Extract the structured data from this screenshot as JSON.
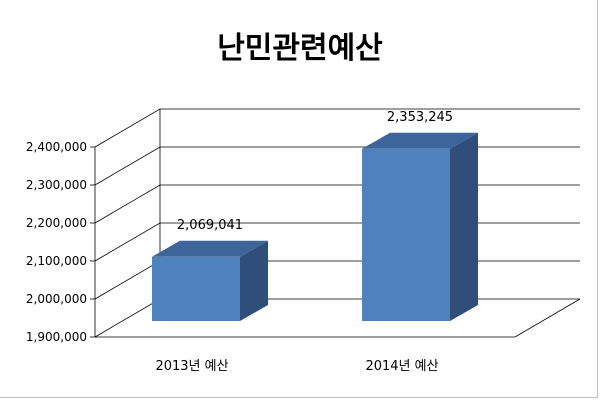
{
  "chart_data": {
    "type": "bar",
    "title": "난민관련예산",
    "categories": [
      "2013년 예산",
      "2014년 예산"
    ],
    "values": [
      2069041,
      2353245
    ],
    "data_labels": [
      "2,069,041",
      "2,353,245"
    ],
    "y_ticks": [
      "1,900,000",
      "2,000,000",
      "2,100,000",
      "2,200,000",
      "2,300,000",
      "2,400,000"
    ],
    "ylim": [
      1900000,
      2400000
    ],
    "grid": true,
    "three_d": true,
    "legend": "none",
    "colors": {
      "bar_front": "#4f81bd",
      "bar_side": "#2f4e7a",
      "bar_top": "#3d659a",
      "gridline": "#000000",
      "text": "#000000"
    }
  }
}
